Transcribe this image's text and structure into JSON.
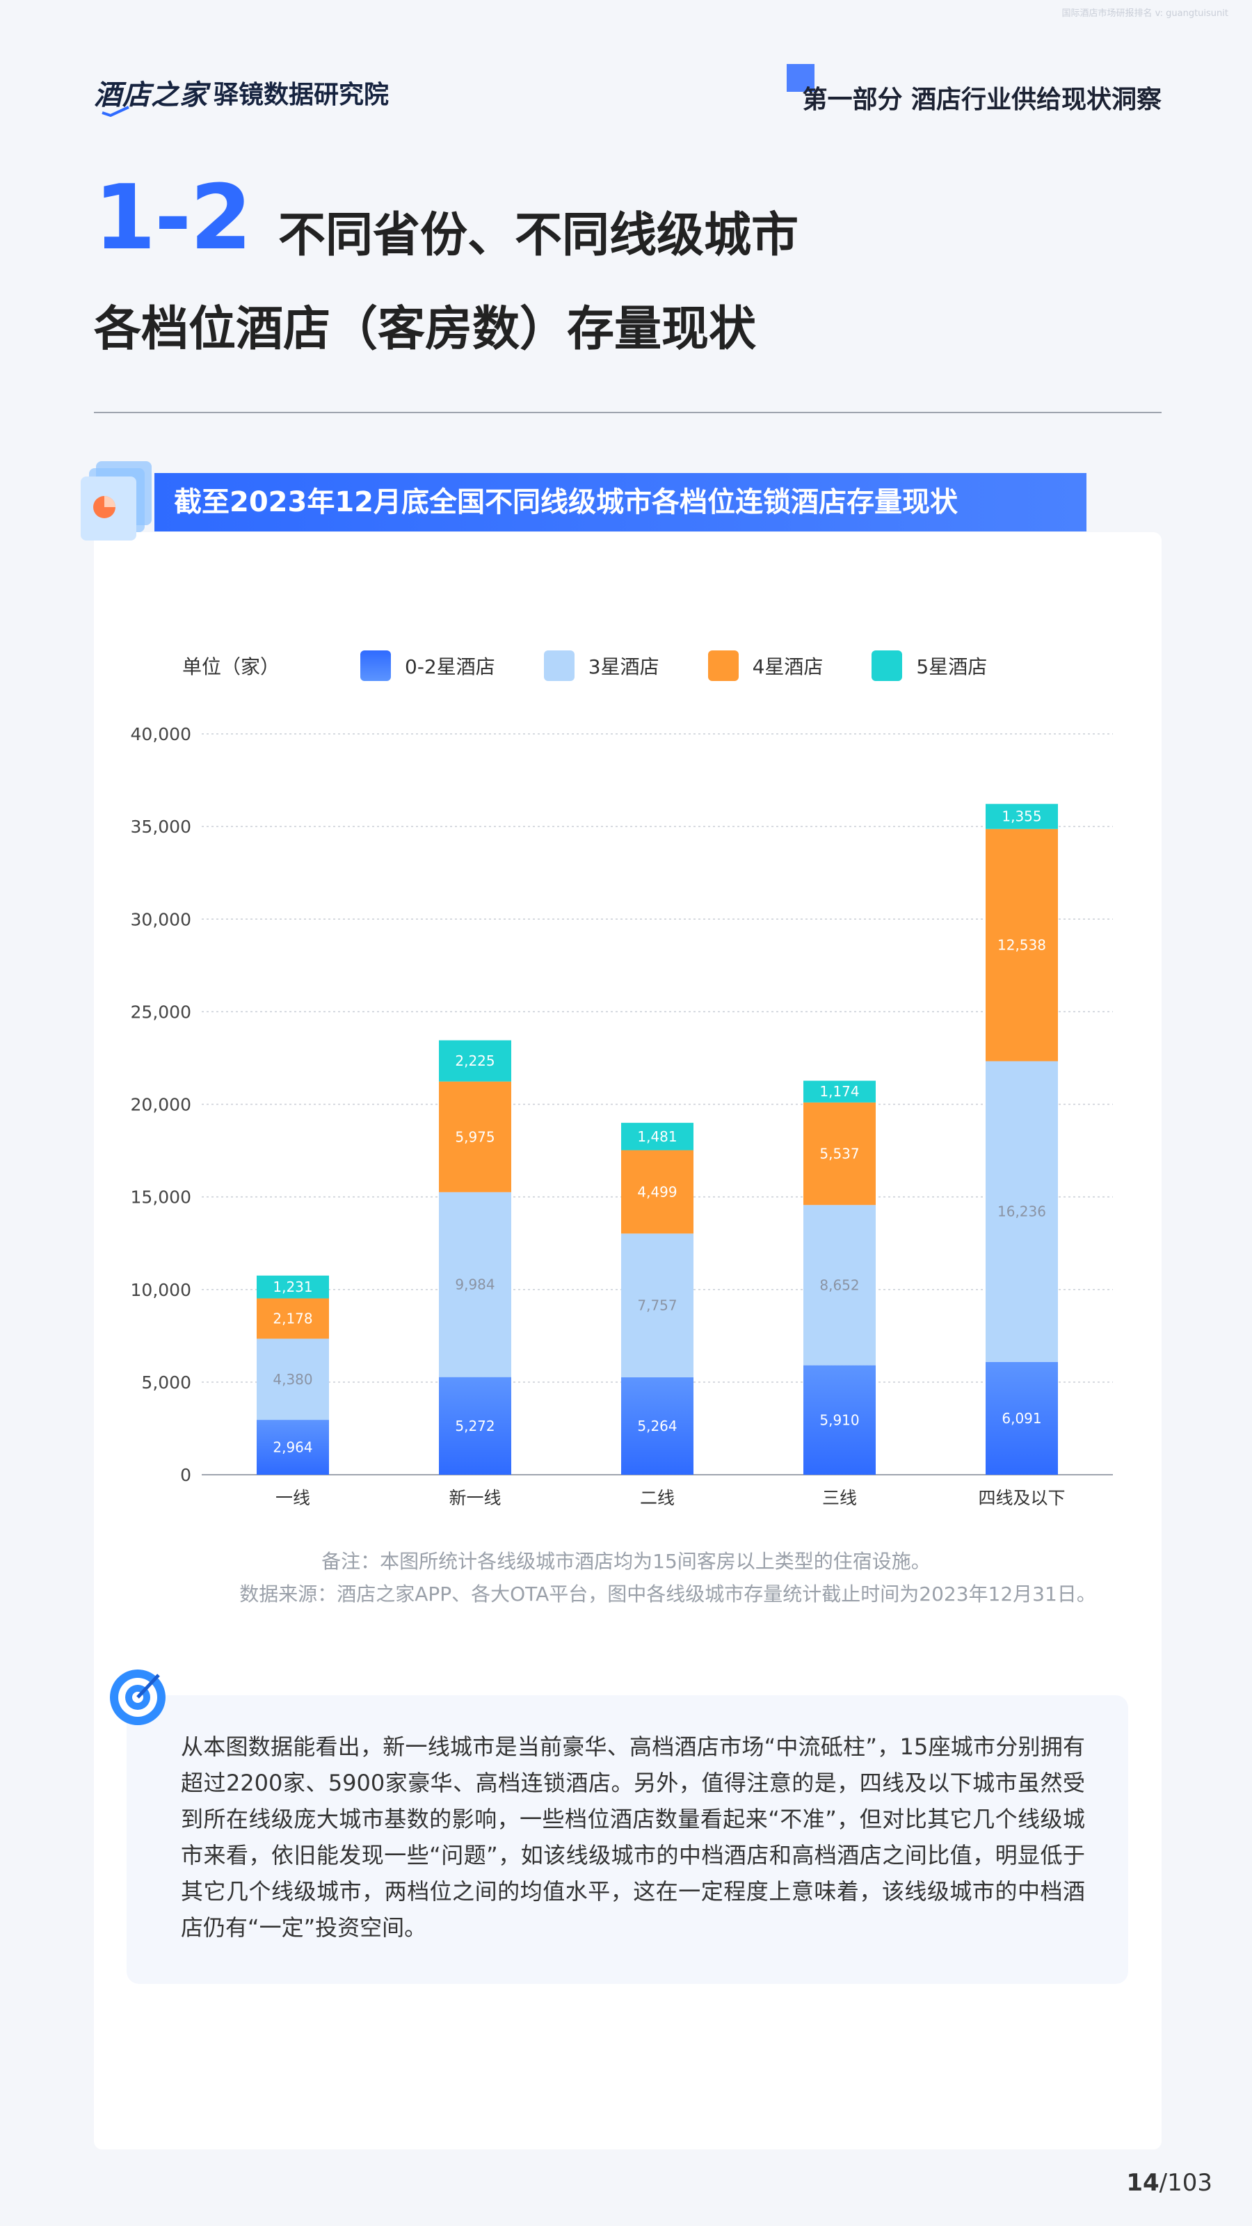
{
  "watermark": "国际酒店市场研报排名 v: guangtuisunit",
  "header": {
    "logo_text": "酒店之家",
    "logo_sub": "驿镜数据研究院",
    "section_title": "第一部分 酒店行业供给现状洞察"
  },
  "title": {
    "number": "1-2",
    "line1": "不同省份、不同线级城市",
    "line2": "各档位酒店（客房数）存量现状"
  },
  "banner": "截至2023年12月底全国不同线级城市各档位连锁酒店存量现状",
  "chart_data": {
    "type": "bar",
    "stacked": true,
    "unit_label": "单位（家）",
    "categories": [
      "一线",
      "新一线",
      "二线",
      "三线",
      "四线及以下"
    ],
    "series": [
      {
        "name": "0-2星酒店",
        "color": "#3a7bff",
        "values": [
          2964,
          5272,
          5264,
          5910,
          6091
        ]
      },
      {
        "name": "3星酒店",
        "color": "#b3d6fb",
        "values": [
          4380,
          9984,
          7757,
          8652,
          16236
        ]
      },
      {
        "name": "4星酒店",
        "color": "#ff9a33",
        "values": [
          2178,
          5975,
          4499,
          5537,
          12538
        ]
      },
      {
        "name": "5星酒店",
        "color": "#1ed3d3",
        "values": [
          1231,
          2225,
          1481,
          1174,
          1355
        ]
      }
    ],
    "ylim": [
      0,
      40000
    ],
    "yticks": [
      "0",
      "5,000",
      "10,000",
      "15,000",
      "20,000",
      "25,000",
      "30,000",
      "35,000",
      "40,000"
    ],
    "labels": [
      [
        "2,964",
        "5,272",
        "5,264",
        "5,910",
        "6,091"
      ],
      [
        "4,380",
        "9,984",
        "7,757",
        "8,652",
        "16,236"
      ],
      [
        "2,178",
        "5,975",
        "4,499",
        "5,537",
        "12,538"
      ],
      [
        "1,231",
        "2,225",
        "1,481",
        "1,174",
        "1,355"
      ]
    ],
    "grid": true,
    "legend_position": "top"
  },
  "notes": {
    "note1": "备注：本图所统计各线级城市酒店均为15间客房以上类型的住宿设施。",
    "note2": "数据来源：酒店之家APP、各大OTA平台，图中各线级城市存量统计截止时间为2023年12月31日。"
  },
  "analysis": "从本图数据能看出，新一线城市是当前豪华、高档酒店市场“中流砥柱”，15座城市分别拥有超过2200家、5900家豪华、高档连锁酒店。另外，值得注意的是，四线及以下城市虽然受到所在线级庞大城市基数的影响，一些档位酒店数量看起来“不准”，但对比其它几个线级城市来看，依旧能发现一些“问题”，如该线级城市的中档酒店和高档酒店之间比值，明显低于其它几个线级城市，两档位之间的均值水平，这在一定程度上意味着，该线级城市的中档酒店仍有“一定”投资空间。",
  "page": {
    "current": "14",
    "total": "/103"
  }
}
